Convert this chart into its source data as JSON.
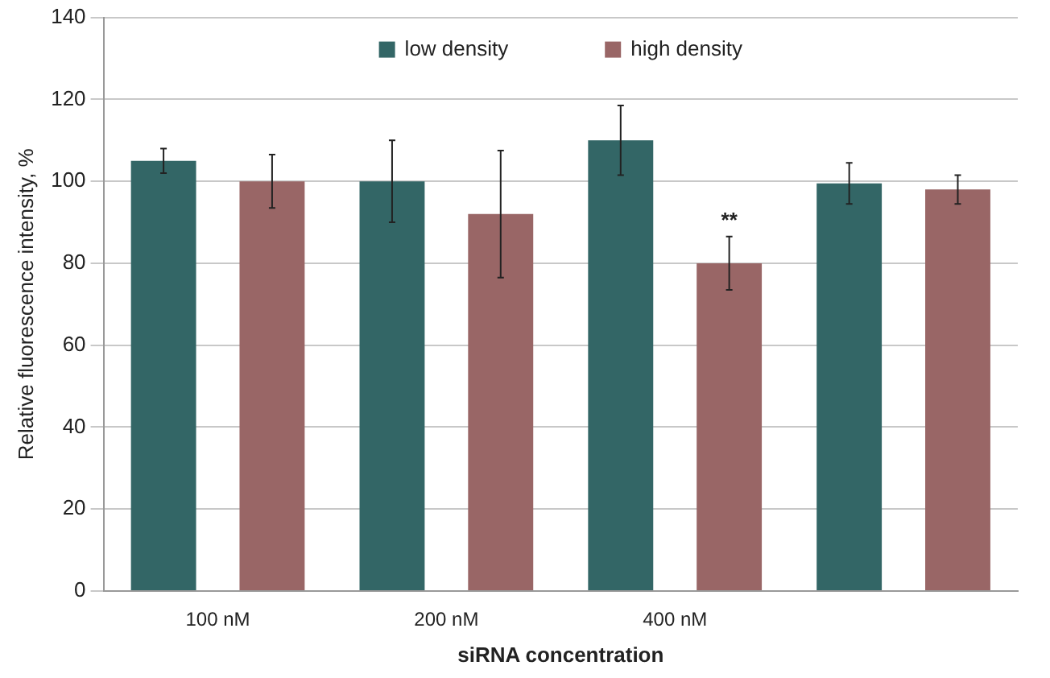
{
  "chart_data": {
    "type": "bar",
    "xlabel": "siRNA concentration",
    "ylabel": "Relative fluorescence intensity, %",
    "categories": [
      "100 nM",
      "200 nM",
      "400 nM",
      null
    ],
    "series": [
      {
        "name": "low density",
        "color": "#336666",
        "values": [
          105,
          100,
          110,
          99.5
        ],
        "errors": [
          3,
          10,
          8.5,
          5
        ]
      },
      {
        "name": "high density",
        "color": "#996666",
        "values": [
          100,
          92,
          80,
          98
        ],
        "errors": [
          6.5,
          15.5,
          6.5,
          3.5
        ]
      }
    ],
    "ylim": [
      0,
      140
    ],
    "yticks": [
      0,
      20,
      40,
      60,
      80,
      100,
      120,
      140
    ],
    "grid": "y",
    "legend": "top",
    "annotations": [
      "**"
    ]
  }
}
